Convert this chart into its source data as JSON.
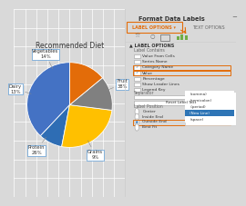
{
  "title": "Recommended Diet",
  "slices": [
    "Fruit",
    "Grains",
    "Protein",
    "Dairy",
    "Vegetables"
  ],
  "values": [
    38,
    9,
    26,
    13,
    14
  ],
  "colors": [
    "#4472C4",
    "#2E6DB4",
    "#FFC000",
    "#808080",
    "#E36C09"
  ],
  "bg_color": "#D9D9D9",
  "chart_bg": "#F2F2F2",
  "panel_bg": "#FAFAFA",
  "title_fontsize": 5.5,
  "label_fontsize": 3.8,
  "startangle": 90,
  "grid_lines_color": "#FFFFFF",
  "panel_title": "Format Data Labels",
  "tab1": "LABEL OPTIONS",
  "tab2": "TEXT OPTIONS",
  "label_options_header": "LABEL OPTIONS",
  "label_contains_title": "Label Contains",
  "checkboxes": [
    {
      "label": "Value From Cells",
      "checked": false
    },
    {
      "label": "Series Name",
      "checked": false
    },
    {
      "label": "Category Name",
      "checked": true
    },
    {
      "label": "Value",
      "checked": true
    },
    {
      "label": "Percentage",
      "checked": false
    },
    {
      "label": "Show Leader Lines",
      "checked": false
    },
    {
      "label": "Legend Key",
      "checked": false
    }
  ],
  "separator_label": "Separator",
  "reset_btn_label": "Reset Label Text",
  "label_position_title": "Label Position",
  "radio_items": [
    {
      "label": "Center",
      "selected": false
    },
    {
      "label": "Inside End",
      "selected": false
    },
    {
      "label": "Outside End",
      "selected": true
    },
    {
      "label": "Best Fit",
      "selected": false
    }
  ],
  "dropdown_items": [
    {
      "label": "(comma)",
      "highlighted": false
    },
    {
      "label": "(semicolon)",
      "highlighted": false
    },
    {
      "label": ".(period)",
      "highlighted": false
    },
    {
      "label": "(New Line)",
      "highlighted": true
    },
    {
      "label": "(space)",
      "highlighted": false
    }
  ],
  "orange": "#E36C09",
  "blue": "#4472C4",
  "dark_blue": "#2E75B6",
  "gray_text": "#666666",
  "dark_text": "#333333",
  "checkbox_border": "#AAAAAA",
  "panel_line_color": "#CCCCCC"
}
